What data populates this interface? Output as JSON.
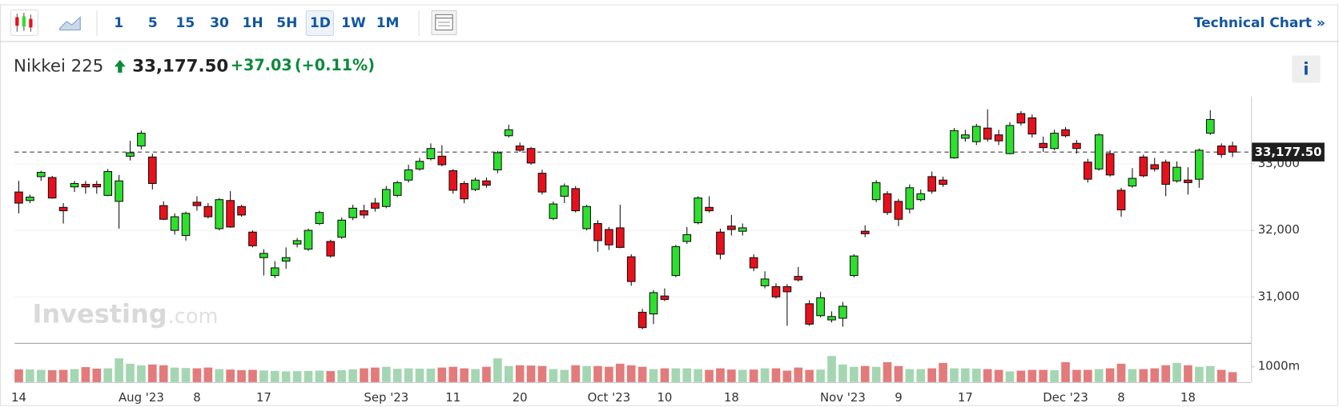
{
  "toolbar": {
    "intervals": [
      "1",
      "5",
      "15",
      "30",
      "1H",
      "5H",
      "1D",
      "1W",
      "1M"
    ],
    "selected_index": 6,
    "link": "Technical Chart »"
  },
  "header": {
    "name": "Nikkei 225",
    "change": "+37.03",
    "change_percent": "(+0.11%)",
    "info": "i"
  },
  "watermark": [
    "Investing",
    ".com"
  ],
  "chart_data": {
    "type": "candlestick",
    "categories": [
      "14",
      null,
      null,
      null,
      null,
      null,
      null,
      null,
      null,
      null,
      null,
      "Aug '23",
      null,
      null,
      null,
      null,
      "8",
      null,
      null,
      null,
      null,
      null,
      "17",
      null,
      null,
      null,
      null,
      null,
      null,
      null,
      null,
      null,
      null,
      "Sep '23",
      null,
      null,
      null,
      null,
      null,
      "11",
      null,
      null,
      null,
      null,
      null,
      "20",
      null,
      null,
      null,
      null,
      null,
      null,
      null,
      "Oct '23",
      null,
      null,
      null,
      null,
      "10",
      null,
      null,
      null,
      null,
      null,
      "18",
      null,
      null,
      null,
      null,
      null,
      null,
      null,
      null,
      null,
      "Nov '23",
      null,
      null,
      null,
      null,
      "9",
      null,
      null,
      null,
      null,
      null,
      "17",
      null,
      null,
      null,
      null,
      null,
      null,
      null,
      null,
      "Dec '23",
      null,
      null,
      null,
      null,
      "8",
      null,
      null,
      null,
      null,
      null,
      "18",
      null,
      null,
      null,
      null
    ],
    "open": [
      32577,
      32449,
      32808,
      32795,
      32346,
      32654,
      32692,
      32692,
      32526,
      32436,
      33115,
      33269,
      33103,
      32372,
      32000,
      31923,
      32423,
      32359,
      32026,
      32449,
      32359,
      31974,
      31590,
      31321,
      31538,
      31795,
      31718,
      32103,
      31833,
      31897,
      32192,
      32295,
      32410,
      32359,
      32526,
      32756,
      32923,
      33077,
      33115,
      32897,
      32705,
      32615,
      32744,
      32910,
      33423,
      33269,
      33231,
      32859,
      32179,
      32513,
      32628,
      32026,
      32103,
      32013,
      32038,
      31603,
      30769,
      30744,
      31013,
      31321,
      31833,
      32115,
      32346,
      31974,
      32064,
      31987,
      31590,
      31167,
      31154,
      31154,
      31308,
      30897,
      30718,
      30654,
      30679,
      31321,
      31987,
      32462,
      32551,
      32436,
      32321,
      32462,
      32808,
      32756,
      33090,
      33385,
      33333,
      33538,
      33436,
      33154,
      33756,
      33692,
      33308,
      33231,
      33513,
      33308,
      33026,
      32923,
      33154,
      32603,
      32667,
      33103,
      32987,
      33026,
      32744,
      32756,
      32769,
      33461,
      33269,
      33269
    ],
    "high": [
      32744,
      32538,
      32897,
      32820,
      32410,
      32744,
      32744,
      32744,
      32923,
      32833,
      33346,
      33500,
      33154,
      32436,
      32256,
      32282,
      32513,
      32410,
      32487,
      32590,
      32385,
      32000,
      31718,
      31538,
      31744,
      31885,
      32026,
      32295,
      31859,
      32192,
      32385,
      32385,
      32487,
      32667,
      32744,
      32987,
      33090,
      33308,
      33282,
      32923,
      32744,
      32795,
      32795,
      33192,
      33590,
      33320,
      33256,
      32910,
      32436,
      32705,
      32667,
      32385,
      32154,
      32051,
      32385,
      31641,
      30821,
      31103,
      31128,
      31782,
      32051,
      32513,
      32513,
      32026,
      32231,
      32103,
      31641,
      31385,
      31205,
      31192,
      31449,
      30949,
      31077,
      30782,
      30923,
      31641,
      32077,
      32756,
      32590,
      32474,
      32692,
      32615,
      32885,
      32808,
      33538,
      33513,
      33603,
      33820,
      33513,
      33628,
      33795,
      33744,
      33410,
      33513,
      33551,
      33359,
      33077,
      33462,
      33205,
      32641,
      32936,
      33141,
      33090,
      33064,
      33038,
      32949,
      33231,
      33808,
      33308,
      33333
    ],
    "low": [
      32256,
      32410,
      32744,
      32474,
      32103,
      32577,
      32551,
      32551,
      32513,
      32026,
      33051,
      33218,
      32615,
      32154,
      31936,
      31846,
      32295,
      32179,
      32000,
      32038,
      32205,
      31744,
      31321,
      31282,
      31423,
      31744,
      31692,
      32077,
      31590,
      31872,
      32154,
      32179,
      32282,
      32333,
      32500,
      32718,
      32897,
      33051,
      32962,
      32551,
      32410,
      32590,
      32641,
      32859,
      33397,
      33179,
      32987,
      32538,
      32154,
      32410,
      32269,
      32000,
      31679,
      31705,
      31731,
      31167,
      30513,
      30590,
      30936,
      31295,
      31795,
      32090,
      32269,
      31564,
      31923,
      31923,
      31385,
      31128,
      30974,
      30564,
      31231,
      30564,
      30692,
      30615,
      30551,
      31295,
      31897,
      32423,
      32231,
      32064,
      32256,
      32436,
      32551,
      32654,
      33077,
      33333,
      33282,
      33333,
      33282,
      33141,
      33577,
      33397,
      33179,
      33205,
      33397,
      33154,
      32718,
      32897,
      32808,
      32205,
      32641,
      32795,
      32885,
      32513,
      32718,
      32538,
      32641,
      33436,
      33090,
      33103
    ],
    "close": [
      32410,
      32500,
      32872,
      32487,
      32295,
      32705,
      32654,
      32654,
      32885,
      32744,
      33167,
      33461,
      32705,
      32167,
      32205,
      32256,
      32372,
      32205,
      32462,
      32051,
      32231,
      31769,
      31654,
      31436,
      31590,
      31846,
      32000,
      32269,
      31615,
      32154,
      32333,
      32231,
      32333,
      32615,
      32718,
      32910,
      33038,
      33231,
      32987,
      32603,
      32474,
      32756,
      32679,
      33167,
      33513,
      33205,
      33013,
      32577,
      32397,
      32667,
      32295,
      32359,
      31846,
      31782,
      31744,
      31231,
      30538,
      31064,
      30962,
      31756,
      31936,
      32487,
      32295,
      31641,
      32013,
      32038,
      31436,
      31269,
      31000,
      31077,
      31256,
      30590,
      30987,
      30705,
      30859,
      31615,
      31949,
      32718,
      32269,
      32167,
      32641,
      32551,
      32590,
      32692,
      33500,
      33436,
      33564,
      33372,
      33346,
      33577,
      33615,
      33449,
      33244,
      33461,
      33423,
      33231,
      32769,
      33436,
      32833,
      32308,
      32782,
      32821,
      32923,
      32692,
      32949,
      32718,
      33205,
      33667,
      33140.47,
      33177.5
    ],
    "volume": [
      830,
      830,
      800,
      780,
      800,
      850,
      980,
      880,
      900,
      1550,
      1200,
      1100,
      1150,
      1100,
      950,
      920,
      900,
      950,
      850,
      820,
      780,
      800,
      760,
      730,
      700,
      720,
      730,
      750,
      720,
      780,
      830,
      900,
      950,
      1000,
      870,
      900,
      880,
      880,
      950,
      1000,
      900,
      850,
      1000,
      1550,
      1050,
      1100,
      1080,
      1050,
      850,
      800,
      1100,
      1050,
      1050,
      1000,
      1200,
      1100,
      1000,
      850,
      900,
      900,
      900,
      850,
      800,
      900,
      820,
      800,
      820,
      900,
      900,
      750,
      950,
      800,
      820,
      1700,
      1150,
      1000,
      1050,
      1000,
      1300,
      1050,
      850,
      850,
      900,
      1250,
      900,
      900,
      880,
      850,
      800,
      700,
      750,
      800,
      800,
      780,
      1300,
      800,
      800,
      850,
      900,
      1200,
      850,
      850,
      900,
      1100,
      1250,
      1100,
      1000,
      1050,
      800,
      650
    ],
    "up_color": "#2ee02e",
    "down_color": "#e8111b",
    "volume_up_color": "#a5d6b2",
    "volume_down_color": "#e37b7b",
    "ylim": [
      30308,
      34013
    ],
    "yticks": [
      {
        "value": 31000,
        "label": "31,000"
      },
      {
        "value": 32000,
        "label": "32,000"
      },
      {
        "value": 33000,
        "label": "33,000"
      }
    ],
    "volume_lim": [
      0,
      2500
    ],
    "volume_ticks": [
      {
        "value": 1000,
        "label": "1000m"
      }
    ],
    "last_price": {
      "value": 33177.5,
      "label": "33,177.50"
    },
    "grid": true
  }
}
